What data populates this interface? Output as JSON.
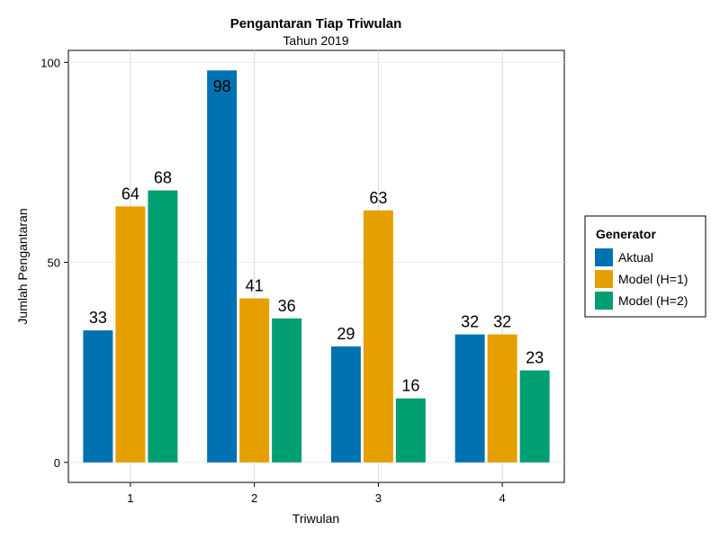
{
  "chart_data": {
    "type": "bar",
    "title": "Pengantaran Tiap Triwulan",
    "subtitle": "Tahun 2019",
    "xlabel": "Triwulan",
    "ylabel": "Jumlah Pengantaran",
    "categories": [
      "1",
      "2",
      "3",
      "4"
    ],
    "yticks": [
      0,
      50,
      100
    ],
    "ylim": [
      -5,
      103
    ],
    "grid": true,
    "legend": {
      "title": "Generator",
      "position": "right"
    },
    "series": [
      {
        "name": "Aktual",
        "color": "#0072b2",
        "values": [
          33,
          98,
          29,
          32
        ]
      },
      {
        "name": "Model (H=1)",
        "color": "#e69f00",
        "values": [
          64,
          41,
          63,
          32
        ]
      },
      {
        "name": "Model (H=2)",
        "color": "#009e73",
        "values": [
          68,
          36,
          16,
          23
        ]
      }
    ]
  }
}
